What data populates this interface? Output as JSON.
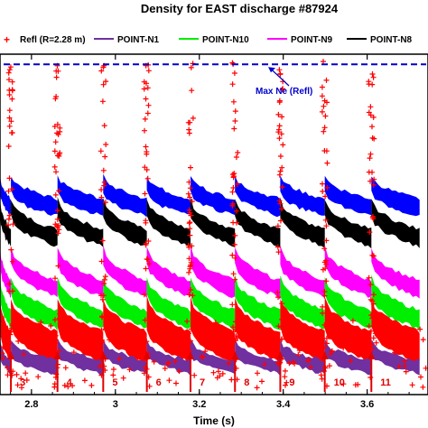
{
  "chart_data": {
    "type": "scatter",
    "title": "Density for EAST discharge #87924",
    "xlabel": "Time (s)",
    "ylabel": "",
    "xlim": [
      2.725,
      3.745
    ],
    "x_ticks": [
      "2.8",
      "3",
      "3.2",
      "3.4",
      "3.6"
    ],
    "x_tick_values": [
      2.8,
      3.0,
      3.2,
      3.4,
      3.6
    ],
    "grid": false,
    "legend_position": "top",
    "legend": [
      {
        "name": "Refl (R=2.28 m)",
        "color": "#ff0000",
        "marker": "+"
      },
      {
        "name": "POINT-N1",
        "color": "#7030a0",
        "marker": "line"
      },
      {
        "name": "POINT-N10",
        "color": "#00ee00",
        "marker": "line"
      },
      {
        "name": "POINT-N9",
        "color": "#ff00ff",
        "marker": "line"
      },
      {
        "name": "POINT-N8",
        "color": "#000000",
        "marker": "line"
      }
    ],
    "extra_series_colors": {
      "top": "#0000ff",
      "cap": "#00c8ff"
    },
    "max_ne_line": {
      "label": "Max Ne (Refl)",
      "color": "#0000cc",
      "style": "dashed",
      "level": 0.97
    },
    "elm_arrows": {
      "color": "#e00000",
      "numbers": [
        "3",
        "4",
        "5",
        "6",
        "7",
        "8",
        "9",
        "10",
        "11"
      ],
      "times": [
        2.751,
        2.862,
        2.971,
        3.075,
        3.179,
        3.285,
        3.393,
        3.499,
        3.61
      ]
    },
    "pulse_starts": [
      2.725,
      2.751,
      2.862,
      2.971,
      3.075,
      3.179,
      3.285,
      3.393,
      3.499,
      3.61,
      3.725
    ],
    "series_levels": {
      "note_units": "relative density (0 = bottom of axes, 1 = top)",
      "N1_purple": {
        "start": 0.14,
        "end": 0.08
      },
      "Refl_red": {
        "start": 0.24,
        "end": 0.14
      },
      "N10_green": {
        "start": 0.32,
        "end": 0.22
      },
      "N9_magenta": {
        "start": 0.41,
        "end": 0.31
      },
      "N8_black": {
        "start": 0.55,
        "end": 0.46
      },
      "top_blue": {
        "start": 0.62,
        "end": 0.55
      }
    }
  }
}
